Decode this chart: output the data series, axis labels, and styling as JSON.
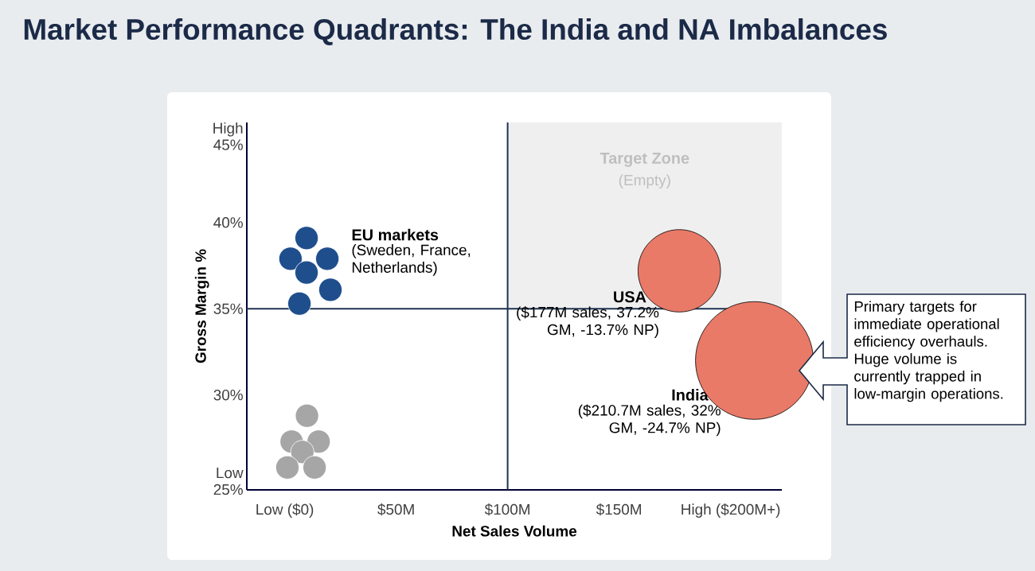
{
  "chart_data": {
    "type": "bubble",
    "title": "Market Performance Quadrants: The India and NA Imbalances",
    "xlabel": "Net Sales Volume",
    "ylabel": "Gross Margin %",
    "xlim": [
      -17,
      223
    ],
    "ylim": [
      24.5,
      45.8
    ],
    "xticks": [
      {
        "value": 0,
        "label": "Low ($0)"
      },
      {
        "value": 50,
        "label": "$50M"
      },
      {
        "value": 100,
        "label": "$100M"
      },
      {
        "value": 150,
        "label": "$150M"
      },
      {
        "value": 200,
        "label": "High ($200M+)"
      }
    ],
    "yticks": [
      {
        "value": 25,
        "label": "Low 25%"
      },
      {
        "value": 30,
        "label": "30%"
      },
      {
        "value": 35,
        "label": "35%"
      },
      {
        "value": 40,
        "label": "40%"
      },
      {
        "value": 45,
        "label": "High 45%"
      }
    ],
    "grid": false,
    "series": [
      {
        "name": "EU markets",
        "type": "scatter",
        "color": "#1f4e8c",
        "x": [
          9.8,
          2.6,
          19.1,
          9.8,
          20.5,
          6.6
        ],
        "values": [
          39.1,
          37.9,
          37.9,
          37.1,
          36.1,
          35.3
        ]
      },
      {
        "type": "scatter",
        "color": "#a6a6a6",
        "x": [
          10,
          3.1,
          15.2,
          7.9,
          1.2,
          13.4
        ],
        "values": [
          28.8,
          27.3,
          27.3,
          26.7,
          25.8,
          25.8
        ]
      },
      {
        "name": "USA",
        "color": "#e97a68",
        "x": [
          177
        ],
        "values": [
          37.2
        ],
        "sizes": [
          0.49
        ]
      },
      {
        "name": "India",
        "color": "#e97a68",
        "x": [
          210.7
        ],
        "values": [
          32
        ],
        "sizes": [
          1
        ]
      }
    ],
    "ref_lines": [
      {
        "axis": "x",
        "value": 100,
        "color": "#1f3350"
      },
      {
        "axis": "y",
        "value": 35,
        "color": "#1f3350"
      }
    ],
    "bands": [
      {
        "axis": "x",
        "from": 100,
        "to": 223,
        "label": "Target Zone",
        "color": "#efefef"
      }
    ],
    "annotations": [
      "(Sweden, France, Netherlands)",
      "($177M sales, 37.2% GM, -13.7% NP)",
      "($210.7M sales, 32% GM, -24.7% NP)",
      "(Empty)",
      "Primary targets for immediate operational efficiency overhauls. Huge volume is currently trapped in low-margin operations."
    ]
  }
}
